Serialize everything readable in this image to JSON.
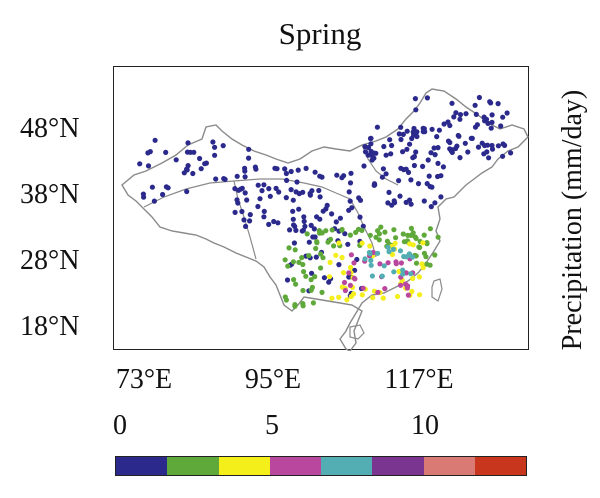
{
  "map": {
    "title": "Spring",
    "y_ticks": [
      "48°N",
      "38°N",
      "28°N",
      "18°N"
    ],
    "x_ticks": [
      "73°E",
      "95°E",
      "117°E"
    ],
    "colorbar_label": "Precipitation (mm/day)",
    "colorbar_ticks": [
      "0",
      "5",
      "10"
    ],
    "colorbar_colors": [
      "#2b2a8c",
      "#5fa83a",
      "#f4ee1a",
      "#b9479e",
      "#52aeb2",
      "#7a3590",
      "#d97b74",
      "#c8361d"
    ],
    "colorbar_range": [
      0,
      13
    ]
  }
}
